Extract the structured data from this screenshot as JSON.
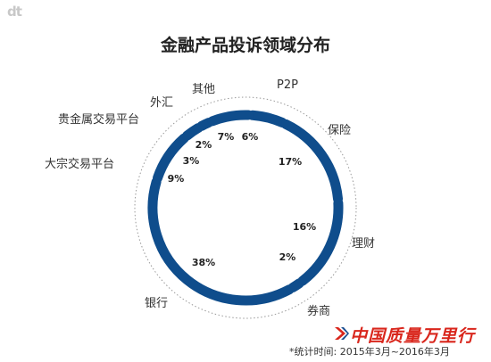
{
  "brand": "dt",
  "title": "金融产品投诉领域分布",
  "note": "*统计时间: 2015年3月~2016年3月",
  "watermark": "中国质量万里行",
  "colors": {
    "ring": "#0f4d8c",
    "outline": "#999999"
  },
  "chart_data": {
    "type": "pie",
    "title": "金融产品投诉领域分布",
    "slices": [
      {
        "label": "P2P",
        "value": 6,
        "value_label": "6%"
      },
      {
        "label": "保险",
        "value": 17,
        "value_label": "17%"
      },
      {
        "label": "理财",
        "value": 16,
        "value_label": "16%"
      },
      {
        "label": "券商",
        "value": 2,
        "value_label": "2%"
      },
      {
        "label": "银行",
        "value": 38,
        "value_label": "38%"
      },
      {
        "label": "大宗交易平台",
        "value": 9,
        "value_label": "9%"
      },
      {
        "label": "贵金属交易平台",
        "value": 3,
        "value_label": "3%"
      },
      {
        "label": "外汇",
        "value": 2,
        "value_label": "2%"
      },
      {
        "label": "其他",
        "value": 7,
        "value_label": "7%"
      }
    ]
  }
}
